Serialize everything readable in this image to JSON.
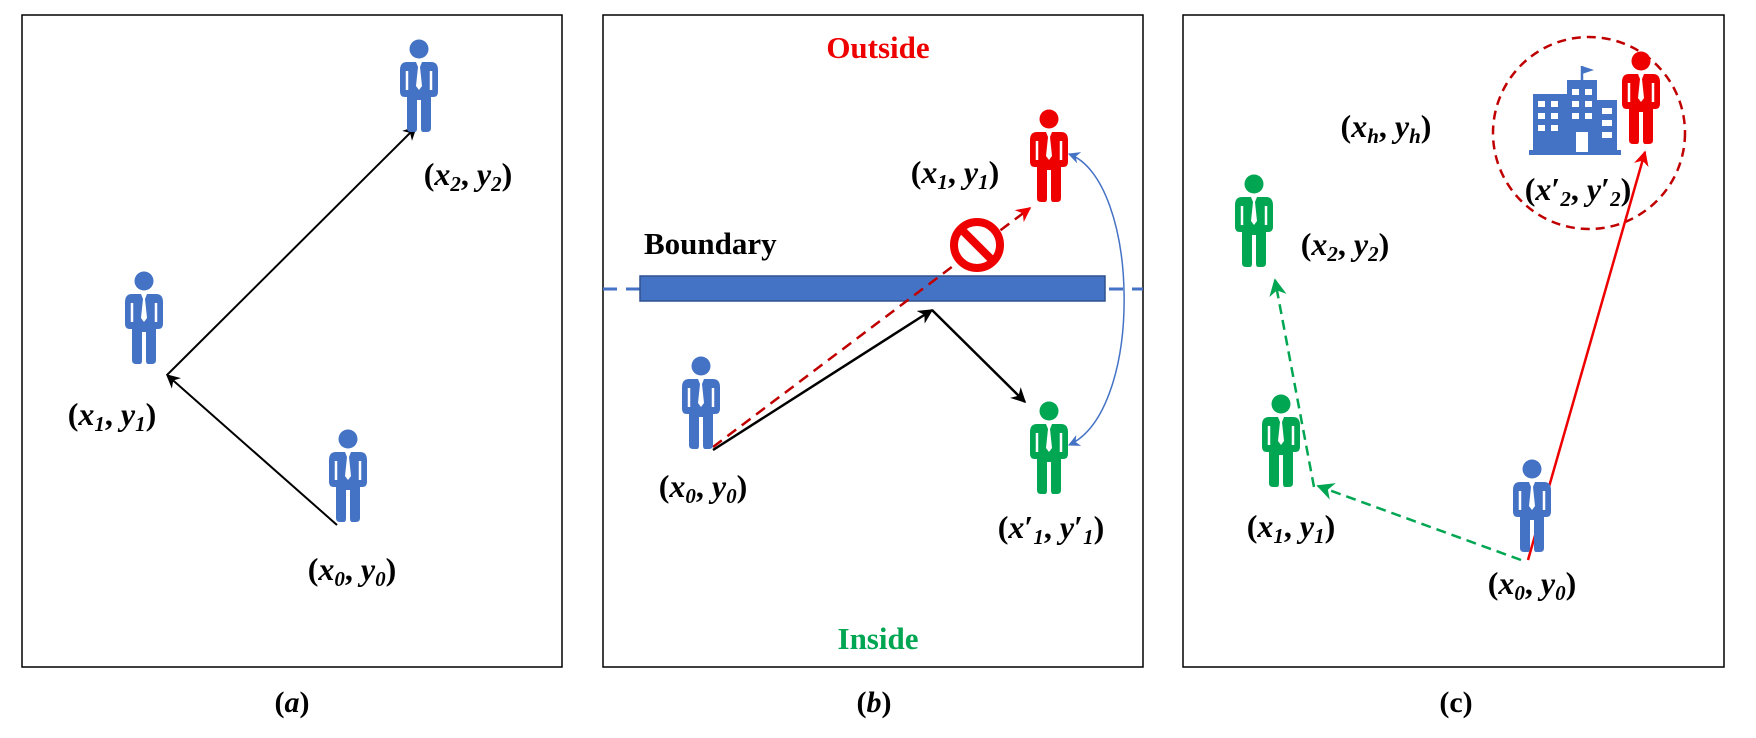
{
  "colors": {
    "blue": "#4472C4",
    "red": "#EE0000",
    "green": "#00A651",
    "dark_red": "#C00000",
    "black": "#000000"
  },
  "icons": {
    "person": "person-icon",
    "prohibited": "prohibited-icon",
    "building": "building-icon"
  },
  "panel_a": {
    "caption_letter": "a",
    "caption_open": "(",
    "caption_close": ")",
    "labels": {
      "p0": "(x0, y0)",
      "p1": "(x1, y1)",
      "p2": "(x2, y2)"
    }
  },
  "panel_b": {
    "caption_letter": "b",
    "caption_open": "(",
    "caption_close": ")",
    "outside": "Outside",
    "inside": "Inside",
    "boundary": "Boundary",
    "labels": {
      "p0": "(x0, y0)",
      "p1": "(x1, y1)",
      "p1_prime": "(x'1, y'1)"
    }
  },
  "panel_c": {
    "caption": "(c)",
    "labels": {
      "p0": "(x0, y0)",
      "p1": "(x1, y1)",
      "p2": "(x2, y2)",
      "home": "(xh, yh)",
      "p2_prime": "(x'2, y'2)"
    }
  }
}
